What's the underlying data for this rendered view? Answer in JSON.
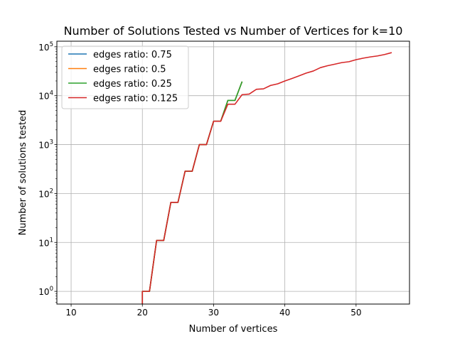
{
  "chart_data": {
    "type": "line",
    "title": "Number of Solutions Tested vs Number of Vertices for k=10",
    "xlabel": "Number of vertices",
    "ylabel": "Number of solutions tested",
    "xlim": [
      8,
      57.5
    ],
    "ylim": [
      0.55,
      130000
    ],
    "yscale": "log",
    "grid": true,
    "legend_position": "upper-left",
    "xticks": [
      {
        "value": 10,
        "label": "10"
      },
      {
        "value": 20,
        "label": "20"
      },
      {
        "value": 30,
        "label": "30"
      },
      {
        "value": 40,
        "label": "40"
      },
      {
        "value": 50,
        "label": "50"
      }
    ],
    "yticks": [
      {
        "value": 1,
        "base": "10",
        "exp": "0"
      },
      {
        "value": 10,
        "base": "10",
        "exp": "1"
      },
      {
        "value": 100,
        "base": "10",
        "exp": "2"
      },
      {
        "value": 1000,
        "base": "10",
        "exp": "3"
      },
      {
        "value": 10000,
        "base": "10",
        "exp": "4"
      },
      {
        "value": 100000,
        "base": "10",
        "exp": "5"
      }
    ],
    "series": [
      {
        "name": "edges ratio: 0.75",
        "color": "#1f77b4",
        "x": [
          20,
          20,
          21,
          22,
          23,
          24,
          25,
          26,
          27,
          28,
          29,
          30,
          31,
          32,
          33,
          34
        ],
        "y": [
          0.5,
          1,
          1,
          11,
          11,
          66,
          66,
          286,
          286,
          1001,
          1001,
          3003,
          3003,
          8008,
          8008,
          19448
        ]
      },
      {
        "name": "edges ratio: 0.5",
        "color": "#ff7f0e",
        "x": [
          20,
          20,
          21,
          22,
          23,
          24,
          25,
          26,
          27,
          28,
          29,
          30,
          31,
          32,
          33,
          34
        ],
        "y": [
          0.5,
          1,
          1,
          11,
          11,
          66,
          66,
          286,
          286,
          1001,
          1001,
          3003,
          3003,
          8008,
          8008,
          19448
        ]
      },
      {
        "name": "edges ratio: 0.25",
        "color": "#2ca02c",
        "x": [
          20,
          20,
          21,
          22,
          23,
          24,
          25,
          26,
          27,
          28,
          29,
          30,
          31,
          32,
          33,
          34
        ],
        "y": [
          0.5,
          1,
          1,
          11,
          11,
          66,
          66,
          286,
          286,
          1001,
          1001,
          3003,
          3003,
          8008,
          8008,
          19448
        ]
      },
      {
        "name": "edges ratio: 0.125",
        "color": "#d62728",
        "x": [
          20,
          20,
          21,
          22,
          23,
          24,
          25,
          26,
          27,
          28,
          29,
          30,
          31,
          32,
          33,
          34,
          35,
          36,
          37,
          38,
          39,
          40,
          41,
          42,
          43,
          44,
          45,
          46,
          47,
          48,
          49,
          50,
          51,
          52,
          53,
          54,
          55
        ],
        "y": [
          0.5,
          1,
          1,
          11,
          11,
          66,
          66,
          286,
          286,
          1001,
          1001,
          3003,
          3003,
          6700,
          6700,
          10500,
          10800,
          13500,
          13800,
          16200,
          17500,
          20000,
          22500,
          25500,
          29000,
          32000,
          37500,
          41000,
          44000,
          47500,
          49500,
          54500,
          58500,
          62000,
          65000,
          69500,
          76000
        ]
      }
    ]
  }
}
